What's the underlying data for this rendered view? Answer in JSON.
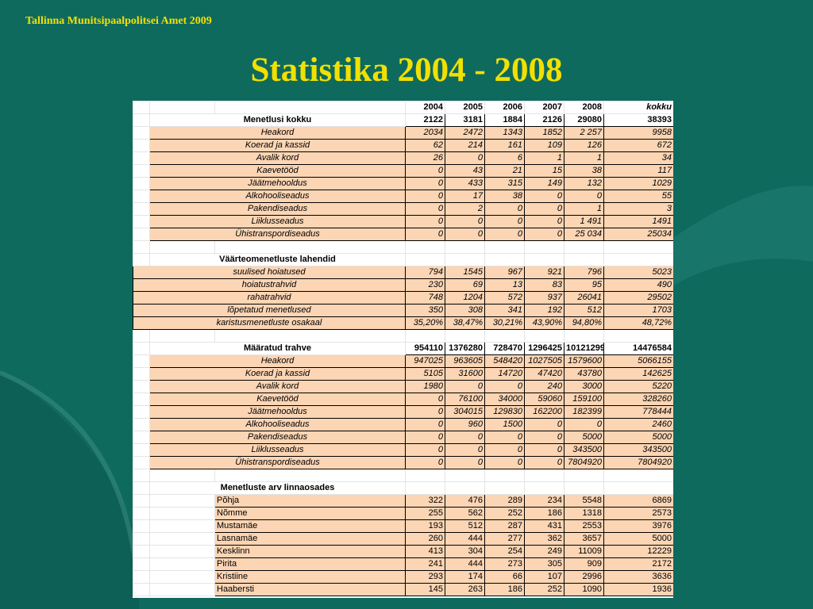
{
  "header": "Tallinna Munitsipaalpolitsei Amet  2009",
  "title": "Statistika 2004 - 2008",
  "colors": {
    "background": "#0f6a5e",
    "title": "#f2e000",
    "cell_fill": "#fcd5b4"
  },
  "years": [
    "2004",
    "2005",
    "2006",
    "2007",
    "2008"
  ],
  "total_label": "kokku",
  "section1": {
    "label": "Menetlusi kokku",
    "totals": [
      "2122",
      "3181",
      "1884",
      "2126",
      "29080",
      "38393"
    ],
    "rows": [
      {
        "label": "Heakord",
        "values": [
          "2034",
          "2472",
          "1343",
          "1852",
          "2 257",
          "9958"
        ]
      },
      {
        "label": "Koerad ja kassid",
        "values": [
          "62",
          "214",
          "161",
          "109",
          "126",
          "672"
        ]
      },
      {
        "label": "Avalik kord",
        "values": [
          "26",
          "0",
          "6",
          "1",
          "1",
          "34"
        ]
      },
      {
        "label": "Kaevetööd",
        "values": [
          "0",
          "43",
          "21",
          "15",
          "38",
          "117"
        ]
      },
      {
        "label": "Jäätmehooldus",
        "values": [
          "0",
          "433",
          "315",
          "149",
          "132",
          "1029"
        ]
      },
      {
        "label": "Alkohooliseadus",
        "values": [
          "0",
          "17",
          "38",
          "0",
          "0",
          "55"
        ]
      },
      {
        "label": "Pakendiseadus",
        "values": [
          "0",
          "2",
          "0",
          "0",
          "1",
          "3"
        ]
      },
      {
        "label": "Liiklusseadus",
        "values": [
          "0",
          "0",
          "0",
          "0",
          "1 491",
          "1491"
        ]
      },
      {
        "label": "Ühistranspordiseadus",
        "values": [
          "0",
          "0",
          "0",
          "0",
          "25 034",
          "25034"
        ]
      }
    ]
  },
  "section2": {
    "label": "Väärteomenetluste lahendid",
    "rows": [
      {
        "label": "suulised hoiatused",
        "values": [
          "794",
          "1545",
          "967",
          "921",
          "796",
          "5023"
        ]
      },
      {
        "label": "hoiatustrahvid",
        "values": [
          "230",
          "69",
          "13",
          "83",
          "95",
          "490"
        ]
      },
      {
        "label": "rahatrahvid",
        "values": [
          "748",
          "1204",
          "572",
          "937",
          "26041",
          "29502"
        ]
      },
      {
        "label": "lõpetatud menetlused",
        "values": [
          "350",
          "308",
          "341",
          "192",
          "512",
          "1703"
        ]
      },
      {
        "label": "karistusmenetluste osakaal",
        "values": [
          "35,20%",
          "38,47%",
          "30,21%",
          "43,90%",
          "94,80%",
          "48,72%"
        ]
      }
    ]
  },
  "section3": {
    "label": "Määratud trahve",
    "totals": [
      "954110",
      "1376280",
      "728470",
      "1296425",
      "10121299",
      "14476584"
    ],
    "rows": [
      {
        "label": "Heakord",
        "values": [
          "947025",
          "963605",
          "548420",
          "1027505",
          "1579600",
          "5066155"
        ]
      },
      {
        "label": "Koerad ja kassid",
        "values": [
          "5105",
          "31600",
          "14720",
          "47420",
          "43780",
          "142625"
        ]
      },
      {
        "label": "Avalik kord",
        "values": [
          "1980",
          "0",
          "0",
          "240",
          "3000",
          "5220"
        ]
      },
      {
        "label": "Kaevetööd",
        "values": [
          "0",
          "76100",
          "34000",
          "59060",
          "159100",
          "328260"
        ]
      },
      {
        "label": "Jäätmehooldus",
        "values": [
          "0",
          "304015",
          "129830",
          "162200",
          "182399",
          "778444"
        ]
      },
      {
        "label": "Alkohooliseadus",
        "values": [
          "0",
          "960",
          "1500",
          "0",
          "0",
          "2460"
        ]
      },
      {
        "label": "Pakendiseadus",
        "values": [
          "0",
          "0",
          "0",
          "0",
          "5000",
          "5000"
        ]
      },
      {
        "label": "Liiklusseadus",
        "values": [
          "0",
          "0",
          "0",
          "0",
          "343500",
          "343500"
        ]
      },
      {
        "label": "Ühistranspordiseadus",
        "values": [
          "0",
          "0",
          "0",
          "0",
          "7804920",
          "7804920"
        ]
      }
    ]
  },
  "section4": {
    "label": "Menetluste arv linnaosades",
    "rows": [
      {
        "label": "Põhja",
        "values": [
          "322",
          "476",
          "289",
          "234",
          "5548",
          "6869"
        ]
      },
      {
        "label": "Nõmme",
        "values": [
          "255",
          "562",
          "252",
          "186",
          "1318",
          "2573"
        ]
      },
      {
        "label": "Mustamäe",
        "values": [
          "193",
          "512",
          "287",
          "431",
          "2553",
          "3976"
        ]
      },
      {
        "label": "Lasnamäe",
        "values": [
          "260",
          "444",
          "277",
          "362",
          "3657",
          "5000"
        ]
      },
      {
        "label": "Kesklinn",
        "values": [
          "413",
          "304",
          "254",
          "249",
          "11009",
          "12229"
        ]
      },
      {
        "label": "Pirita",
        "values": [
          "241",
          "444",
          "273",
          "305",
          "909",
          "2172"
        ]
      },
      {
        "label": "Kristiine",
        "values": [
          "293",
          "174",
          "66",
          "107",
          "2996",
          "3636"
        ]
      },
      {
        "label": "Haabersti",
        "values": [
          "145",
          "263",
          "186",
          "252",
          "1090",
          "1936"
        ]
      }
    ]
  }
}
